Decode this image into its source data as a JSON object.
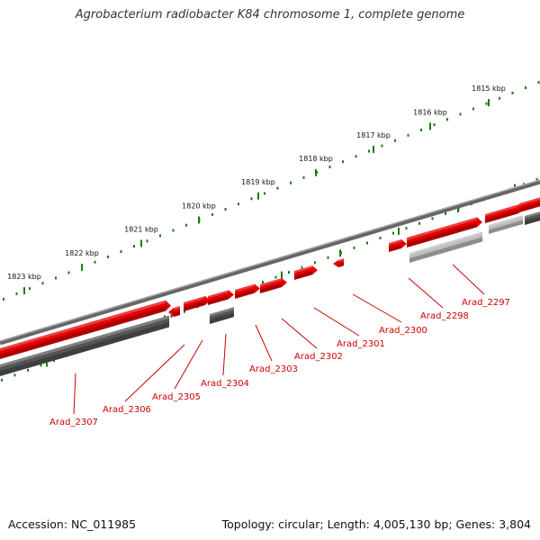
{
  "title": "Agrobacterium radiobacter K84 chromosome 1, complete genome",
  "footer": {
    "accession": "Accession: NC_011985",
    "summary": "Topology: circular; Length: 4,005,130 bp; Genes: 3,804"
  },
  "scale": {
    "unit": "kbp",
    "labels": [
      "1815 kbp",
      "1816 kbp",
      "1817 kbp",
      "1818 kbp",
      "1819 kbp",
      "1820 kbp",
      "1821 kbp",
      "1822 kbp",
      "1823 kbp"
    ]
  },
  "genes": [
    "Arad_2297",
    "Arad_2298",
    "Arad_2300",
    "Arad_2301",
    "Arad_2302",
    "Arad_2303",
    "Arad_2304",
    "Arad_2305",
    "Arad_2306",
    "Arad_2307"
  ],
  "colors": {
    "forward_gene": "#e60000",
    "reverse_gene": "#555555",
    "pseudo_gene": "#bdbdbd",
    "backbone": "#777777",
    "tick": "#1a7a1a",
    "gene_label": "#cc0000"
  }
}
